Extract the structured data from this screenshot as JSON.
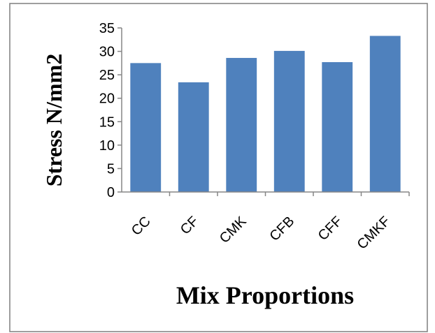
{
  "chart_data": {
    "type": "bar",
    "categories": [
      "CC",
      "CF",
      "CMK",
      "CFB",
      "CFF",
      "CMKF"
    ],
    "values": [
      27.5,
      23.4,
      28.6,
      30.1,
      27.7,
      33.3
    ],
    "title": "",
    "xlabel": "Mix Proportions",
    "ylabel": "Stress N/mm2",
    "ylim": [
      0,
      35
    ],
    "yticks": [
      "0",
      "5",
      "10",
      "15",
      "20",
      "25",
      "30",
      "35"
    ],
    "grid": false,
    "legend": "none",
    "bar_color": "#4F81BD",
    "frame_color": "#7F7F7F",
    "axis_color": "#868686"
  }
}
